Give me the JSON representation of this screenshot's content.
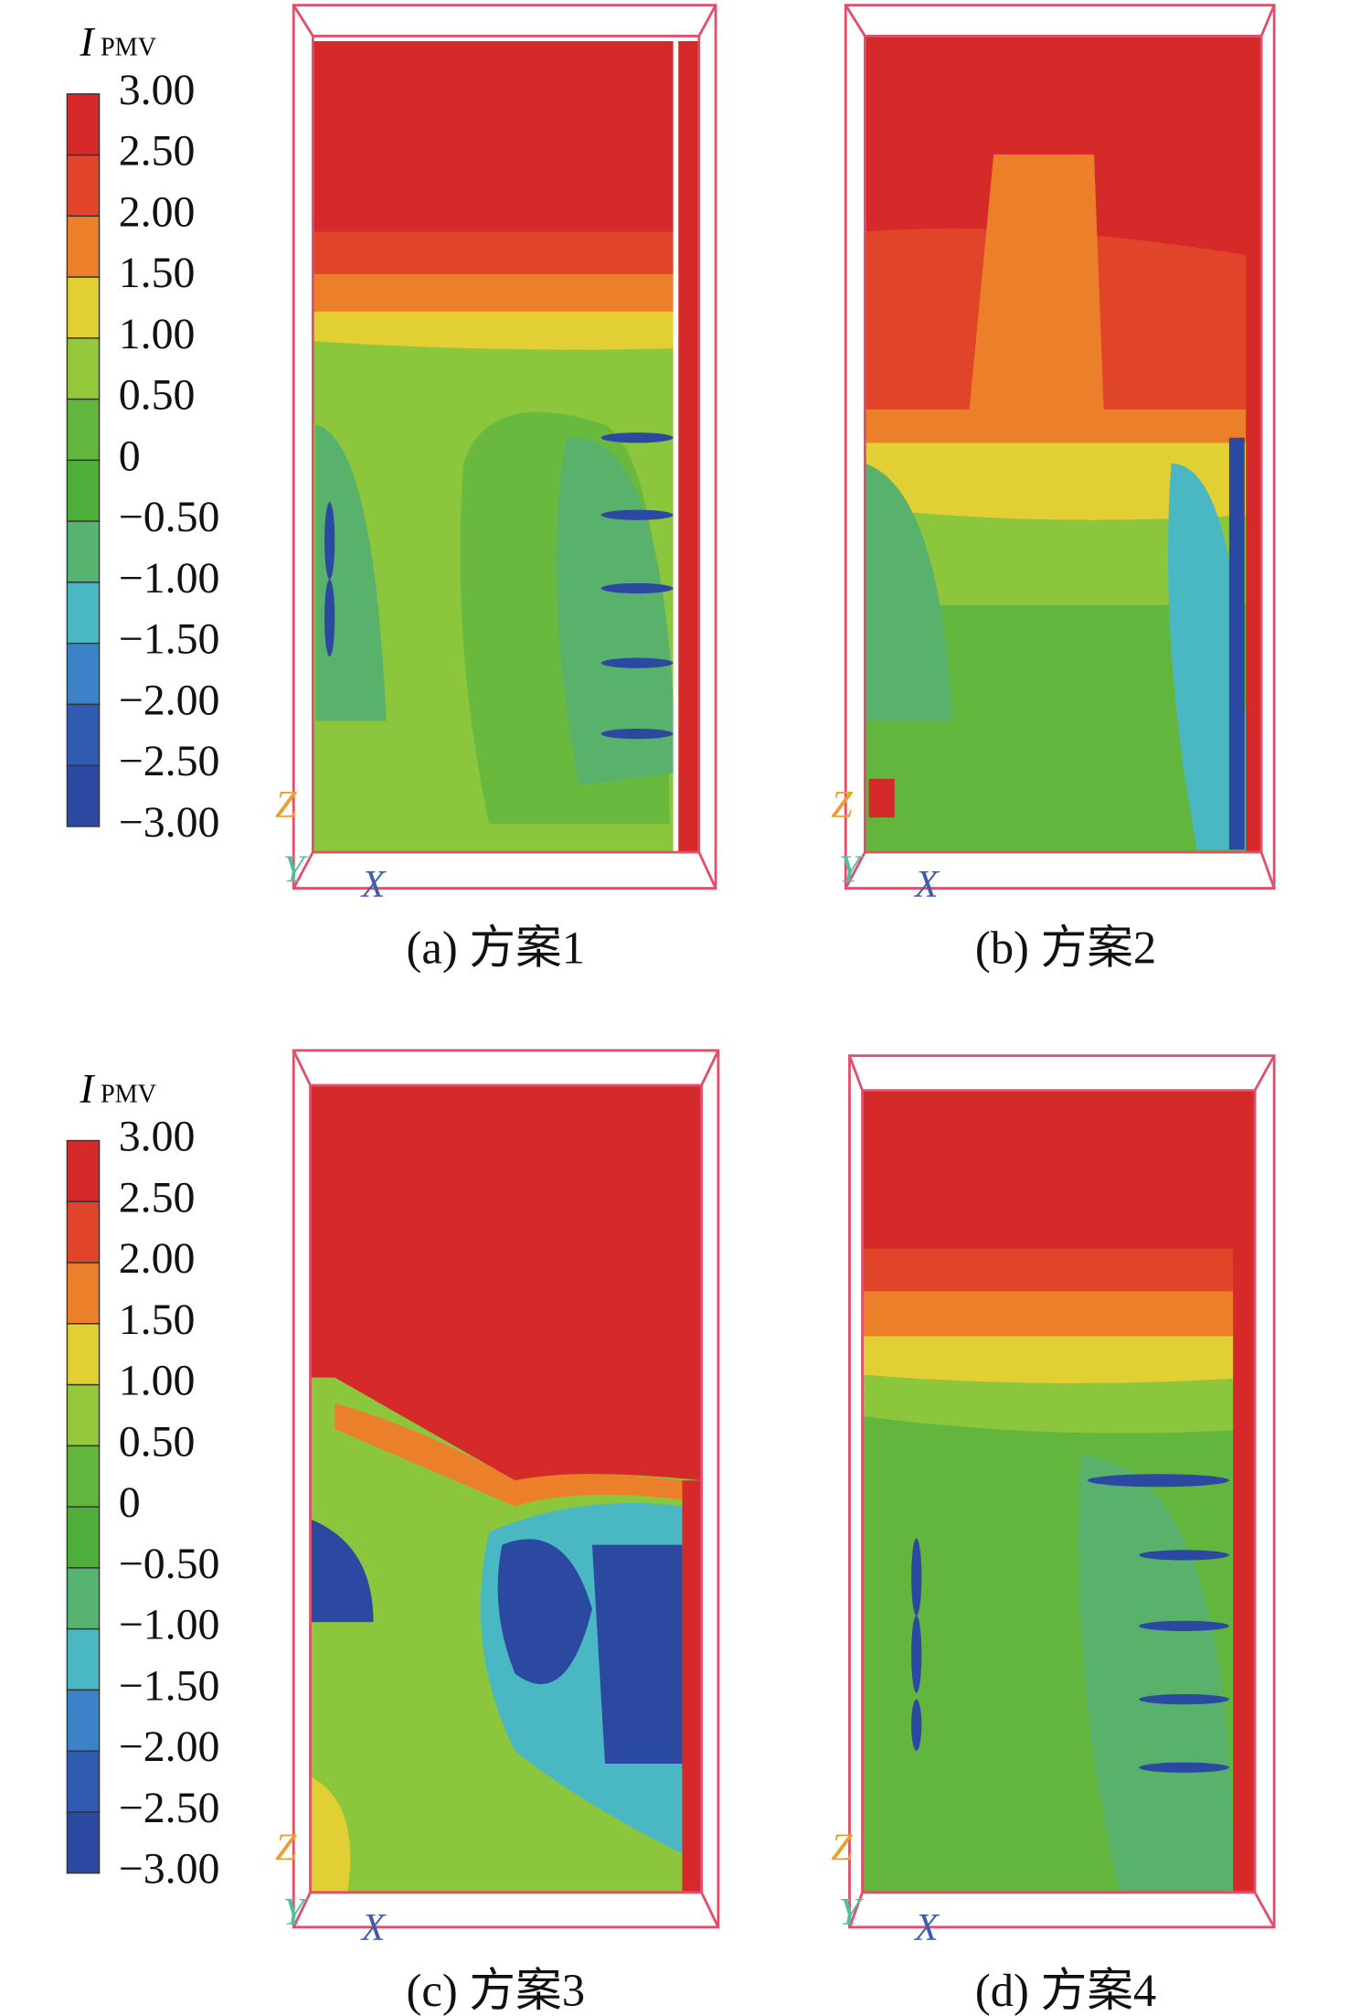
{
  "legends": [
    {
      "title": "I",
      "title_sub": "PMV",
      "labels": [
        "3.00",
        "2.50",
        "2.00",
        "1.50",
        "1.00",
        "0.50",
        "0",
        "−0.50",
        "−1.00",
        "−1.50",
        "−2.00",
        "−2.50",
        "−3.00"
      ]
    },
    {
      "title": "I",
      "title_sub": "PMV",
      "labels": [
        "3.00",
        "2.50",
        "2.00",
        "1.50",
        "1.00",
        "0.50",
        "0",
        "−0.50",
        "−1.00",
        "−1.50",
        "−2.00",
        "−2.50",
        "−3.00"
      ]
    }
  ],
  "panels": [
    {
      "caption": "(a) 方案1",
      "axis_labels": [
        "Z",
        "Y",
        "X"
      ]
    },
    {
      "caption": "(b) 方案2",
      "axis_labels": [
        "Z",
        "Y",
        "X"
      ]
    },
    {
      "caption": "(c) 方案3",
      "axis_labels": [
        "Z",
        "Y",
        "X"
      ]
    },
    {
      "caption": "(d) 方案4",
      "axis_labels": [
        "Z",
        "Y",
        "X"
      ]
    }
  ]
}
